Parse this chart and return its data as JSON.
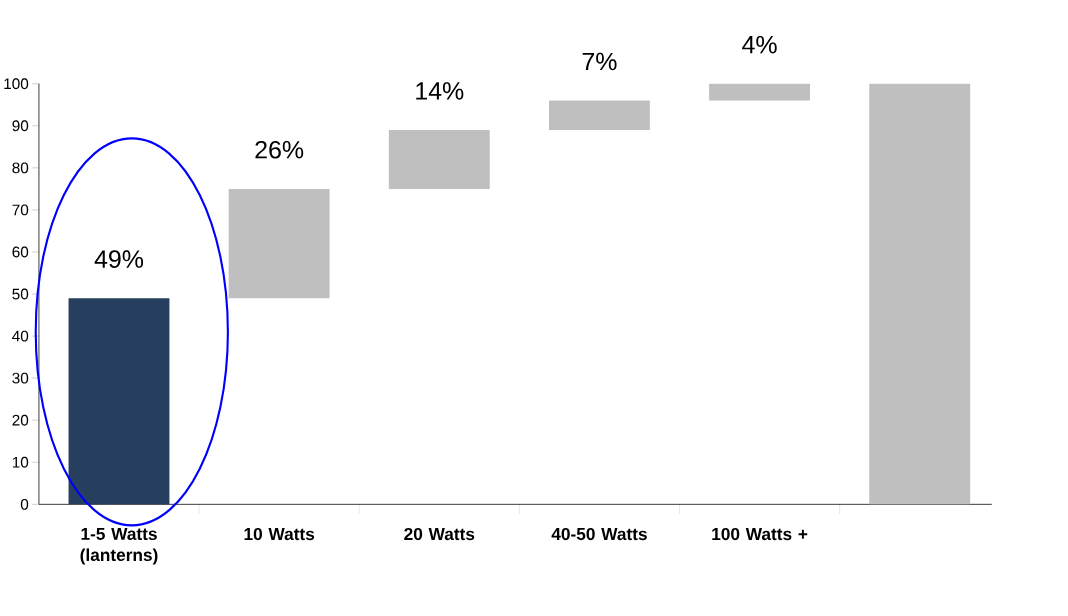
{
  "chart_data": {
    "type": "bar",
    "categories": [
      "1-5 Watts (lanterns)",
      "10 Watts",
      "20 Watts",
      "40-50 Watts",
      "100 Watts +",
      null
    ],
    "values": [
      49,
      26,
      14,
      7,
      4,
      100
    ],
    "base": [
      0,
      49,
      75,
      89,
      96,
      0
    ],
    "colors": [
      "#263f5e",
      "#bfbfbf",
      "#bfbfbf",
      "#bfbfbf",
      "#bfbfbf",
      "#bfbfbf"
    ],
    "value_labels": [
      "49%",
      "26%",
      "14%",
      "7%",
      "4%",
      null
    ],
    "ylim": [
      0,
      100
    ],
    "yticks": [
      0,
      10,
      20,
      30,
      40,
      50,
      60,
      70,
      80,
      90,
      100
    ]
  }
}
